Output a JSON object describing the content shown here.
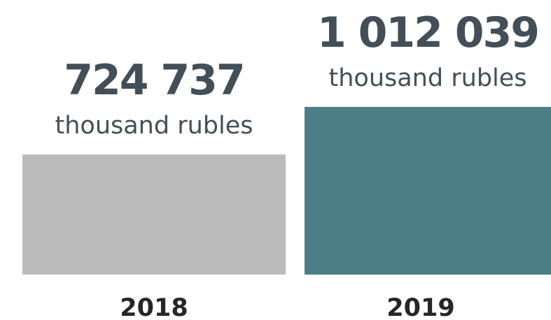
{
  "chart_data": {
    "type": "bar",
    "categories": [
      "2018",
      "2019"
    ],
    "values": [
      724737,
      1012039
    ],
    "value_labels": [
      "724 737",
      "1 012 039"
    ],
    "unit": "thousand rubles",
    "bar_colors": [
      "#bbbbbb",
      "#4b7e86"
    ],
    "text_color": "#434f58",
    "ylim": [
      0,
      1012039
    ],
    "grid": false,
    "axes_visible": false
  }
}
